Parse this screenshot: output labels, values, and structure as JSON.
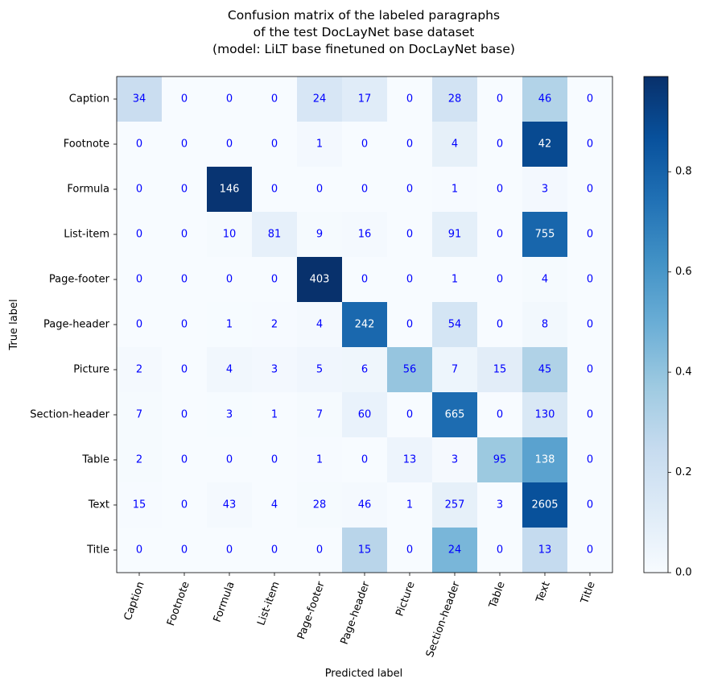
{
  "chart_data": {
    "type": "heatmap",
    "title": [
      "Confusion matrix of the labeled paragraphs",
      "of the test DocLayNet base dataset",
      "(model: LiLT base finetuned on DocLayNet base)"
    ],
    "xlabel": "Predicted label",
    "ylabel": "True label",
    "x_categories": [
      "Caption",
      "Footnote",
      "Formula",
      "List-item",
      "Page-footer",
      "Page-header",
      "Picture",
      "Section-header",
      "Table",
      "Text",
      "Title"
    ],
    "y_categories": [
      "Caption",
      "Footnote",
      "Formula",
      "List-item",
      "Page-footer",
      "Page-header",
      "Picture",
      "Section-header",
      "Table",
      "Text",
      "Title"
    ],
    "values": [
      [
        34,
        0,
        0,
        0,
        24,
        17,
        0,
        28,
        0,
        46,
        0
      ],
      [
        0,
        0,
        0,
        0,
        1,
        0,
        0,
        4,
        0,
        42,
        0
      ],
      [
        0,
        0,
        146,
        0,
        0,
        0,
        0,
        1,
        0,
        3,
        0
      ],
      [
        0,
        0,
        10,
        81,
        9,
        16,
        0,
        91,
        0,
        755,
        0
      ],
      [
        0,
        0,
        0,
        0,
        403,
        0,
        0,
        1,
        0,
        4,
        0
      ],
      [
        0,
        0,
        1,
        2,
        4,
        242,
        0,
        54,
        0,
        8,
        0
      ],
      [
        2,
        0,
        4,
        3,
        5,
        6,
        56,
        7,
        15,
        45,
        0
      ],
      [
        7,
        0,
        3,
        1,
        7,
        60,
        0,
        665,
        0,
        130,
        0
      ],
      [
        2,
        0,
        0,
        0,
        1,
        0,
        13,
        3,
        95,
        138,
        0
      ],
      [
        15,
        0,
        43,
        4,
        28,
        46,
        1,
        257,
        3,
        2605,
        0
      ],
      [
        0,
        0,
        0,
        0,
        0,
        15,
        0,
        24,
        0,
        13,
        0
      ]
    ],
    "color_scale": {
      "colormap": "Blues",
      "colors": [
        "#f7fbff",
        "#deebf7",
        "#c6dbef",
        "#9ecae1",
        "#6baed6",
        "#4292c6",
        "#2171b5",
        "#08519c",
        "#08306b"
      ],
      "min": 0.0,
      "max": 0.99,
      "normalization": "row",
      "ticks": [
        "0.0",
        "0.2",
        "0.4",
        "0.6",
        "0.8"
      ]
    },
    "text_color_light": "#ffffff",
    "text_color_dark": "#0000ff"
  }
}
